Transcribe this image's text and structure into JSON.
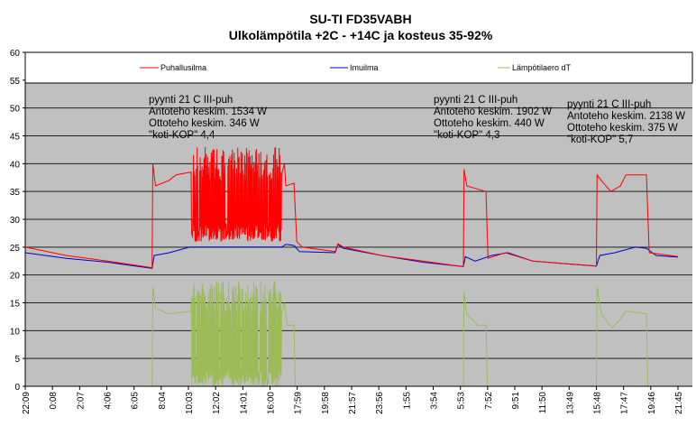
{
  "chart_data": {
    "type": "line",
    "title": "SU-TI FD35VABH",
    "subtitle": "Ulkolämpötila +2C - +14C ja kosteus 35-92%",
    "xlabel": "",
    "ylabel": "",
    "ylim": [
      0,
      60
    ],
    "yticks": [
      0,
      5,
      10,
      15,
      20,
      25,
      30,
      35,
      40,
      45,
      50,
      55,
      60
    ],
    "xlim_hours": [
      0,
      47.6
    ],
    "xtick_labels": [
      "22:09",
      "0:08",
      "2:07",
      "4:06",
      "6:05",
      "8:04",
      "10:03",
      "12:02",
      "14:01",
      "16:00",
      "17:59",
      "19:58",
      "21:57",
      "23:56",
      "1:55",
      "3:54",
      "5:53",
      "7:52",
      "9:51",
      "11:50",
      "13:49",
      "15:48",
      "17:47",
      "19:46",
      "21:45"
    ],
    "grid": true,
    "legend_position": "top",
    "legend": [
      "Puhallusilma",
      "Imuilma",
      "Lämpötilaero dT"
    ],
    "series": [
      {
        "name": "Puhallusilma",
        "color": "#ff0000",
        "points": [
          [
            0,
            25
          ],
          [
            3,
            23.5
          ],
          [
            6,
            22.5
          ],
          [
            9.25,
            21.3
          ],
          [
            9.3,
            40
          ],
          [
            9.5,
            36
          ],
          [
            10.5,
            37
          ],
          [
            11,
            38
          ],
          [
            12.1,
            38.5
          ],
          [
            18.7,
            38
          ],
          [
            18.9,
            40
          ],
          [
            19.0,
            36
          ],
          [
            19.6,
            36.5
          ],
          [
            19.8,
            26
          ],
          [
            20.2,
            25
          ],
          [
            22.6,
            24.2
          ],
          [
            22.8,
            25.6
          ],
          [
            23.2,
            25
          ],
          [
            26,
            23.5
          ],
          [
            29,
            22.5
          ],
          [
            31.95,
            21.5
          ],
          [
            32.0,
            39
          ],
          [
            32.2,
            36
          ],
          [
            33.6,
            35
          ],
          [
            33.75,
            23
          ],
          [
            35,
            24
          ],
          [
            37,
            22.5
          ],
          [
            41.65,
            21.6
          ],
          [
            41.7,
            38
          ],
          [
            42,
            37
          ],
          [
            42.7,
            35
          ],
          [
            43.4,
            36
          ],
          [
            43.8,
            38
          ],
          [
            45.3,
            38
          ],
          [
            45.5,
            24
          ],
          [
            47.6,
            23.3
          ]
        ],
        "oscillation": {
          "from": 12.1,
          "to": 18.7,
          "min": 26,
          "max": 43
        }
      },
      {
        "name": "Imuilma",
        "color": "#0000cc",
        "points": [
          [
            0,
            24
          ],
          [
            3,
            23
          ],
          [
            6,
            22.3
          ],
          [
            9.25,
            21.2
          ],
          [
            9.4,
            23.5
          ],
          [
            10.5,
            24
          ],
          [
            12,
            25
          ],
          [
            18.7,
            25
          ],
          [
            19.0,
            25.5
          ],
          [
            19.6,
            25.3
          ],
          [
            20,
            24.2
          ],
          [
            22.6,
            24
          ],
          [
            22.8,
            25.5
          ],
          [
            23.2,
            24.8
          ],
          [
            26,
            23.5
          ],
          [
            29,
            22.3
          ],
          [
            31.95,
            21.5
          ],
          [
            32.1,
            23.3
          ],
          [
            32.8,
            22.5
          ],
          [
            34,
            23.5
          ],
          [
            35.2,
            24
          ],
          [
            37,
            22.5
          ],
          [
            41.65,
            21.6
          ],
          [
            41.9,
            23.5
          ],
          [
            43,
            24
          ],
          [
            44.5,
            25
          ],
          [
            45.3,
            24.8
          ],
          [
            46,
            23.5
          ],
          [
            47.6,
            23.2
          ]
        ],
        "oscillation": {
          "from": 12.1,
          "to": 18.7,
          "min": 24.3,
          "max": 25.6
        }
      },
      {
        "name": "Lämpötilaero dT",
        "color": "#9bbb59",
        "points": [
          [
            0,
            0
          ],
          [
            9.25,
            0
          ],
          [
            9.3,
            18
          ],
          [
            9.5,
            14
          ],
          [
            10.5,
            13
          ],
          [
            12.1,
            13.5
          ],
          [
            18.7,
            13
          ],
          [
            18.9,
            15
          ],
          [
            19.1,
            11
          ],
          [
            19.6,
            11
          ],
          [
            19.7,
            0
          ],
          [
            31.95,
            0
          ],
          [
            32.0,
            17
          ],
          [
            32.2,
            13
          ],
          [
            33,
            11
          ],
          [
            33.6,
            11
          ],
          [
            33.7,
            0
          ],
          [
            41.65,
            0
          ],
          [
            41.7,
            18
          ],
          [
            42,
            13
          ],
          [
            42.8,
            10.5
          ],
          [
            43.4,
            12
          ],
          [
            43.8,
            13.5
          ],
          [
            45.3,
            13
          ],
          [
            45.4,
            0
          ],
          [
            47.6,
            0
          ]
        ],
        "oscillation": {
          "from": 12.1,
          "to": 18.7,
          "min": 0,
          "max": 19
        }
      }
    ],
    "annotations": [
      {
        "lines": [
          "pyynti 21 C III-puh",
          "Antoteho keskim. 1534 W",
          "Ottoteho keskim. 346 W",
          "\"koti-KOP\" 4,4"
        ]
      },
      {
        "lines": [
          "pyynti 21 C III-puh",
          "Antoteho keskim. 1902 W",
          "Ottoteho keskim. 440 W",
          "\"koti-KOP\" 4,3"
        ]
      },
      {
        "lines": [
          "pyynti 21 C III-puh",
          "Antoteho keskim. 2138 W",
          "Ottoteho keskim. 375 W",
          "\"koti-KOP\" 5,7"
        ]
      }
    ]
  }
}
